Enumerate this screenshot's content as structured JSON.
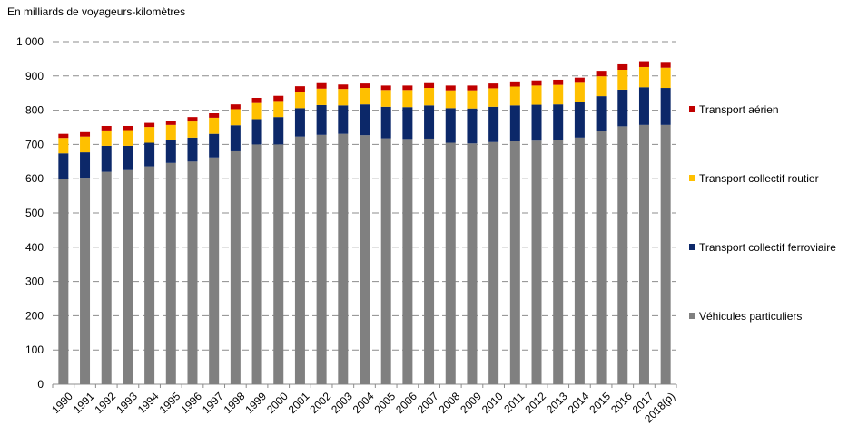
{
  "chart_data": {
    "type": "bar",
    "stacked": true,
    "ylabel": "En milliards de voyageurs-kilomètres",
    "ylim": [
      0,
      1000
    ],
    "yticks": [
      0,
      100,
      200,
      300,
      400,
      500,
      600,
      700,
      800,
      900,
      1000
    ],
    "ytick_labels": [
      "0",
      "100",
      "200",
      "300",
      "400",
      "500",
      "600",
      "700",
      "800",
      "900",
      "1 000"
    ],
    "grid": true,
    "legend_position": "right",
    "categories": [
      "1990",
      "1991",
      "1992",
      "1993",
      "1994",
      "1995",
      "1996",
      "1997",
      "1998",
      "1999",
      "2000",
      "2001",
      "2002",
      "2003",
      "2004",
      "2005",
      "2006",
      "2007",
      "2008",
      "2009",
      "2010",
      "2011",
      "2012",
      "2013",
      "2014",
      "2015",
      "2016",
      "2017",
      "2018(p)"
    ],
    "series": [
      {
        "name": "Véhicules particuliers",
        "color": "#808080",
        "values": [
          598,
          603,
          620,
          625,
          636,
          646,
          650,
          662,
          680,
          700,
          700,
          723,
          728,
          731,
          727,
          718,
          716,
          717,
          705,
          703,
          707,
          709,
          711,
          713,
          720,
          738,
          753,
          757,
          757
        ]
      },
      {
        "name": "Transport collectif ferroviaire",
        "color": "#0c2869",
        "values": [
          76,
          74,
          76,
          71,
          69,
          66,
          70,
          69,
          76,
          74,
          80,
          83,
          87,
          83,
          90,
          92,
          93,
          97,
          101,
          102,
          103,
          105,
          105,
          104,
          104,
          103,
          107,
          110,
          108
        ]
      },
      {
        "name": "Transport collectif routier",
        "color": "#ffc000",
        "values": [
          45,
          46,
          45,
          46,
          46,
          45,
          47,
          47,
          47,
          47,
          47,
          48,
          48,
          48,
          48,
          49,
          50,
          51,
          52,
          53,
          54,
          55,
          56,
          57,
          56,
          58,
          58,
          59,
          59
        ]
      },
      {
        "name": "Transport aérien",
        "color": "#c00000",
        "values": [
          12,
          13,
          13,
          12,
          12,
          12,
          13,
          13,
          14,
          15,
          15,
          16,
          16,
          13,
          13,
          13,
          13,
          14,
          14,
          14,
          14,
          15,
          15,
          15,
          15,
          16,
          16,
          17,
          17
        ]
      }
    ]
  }
}
